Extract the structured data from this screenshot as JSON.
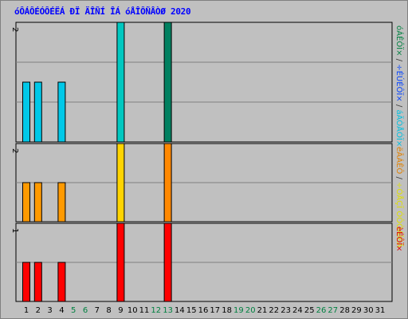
{
  "title": "óÔÁÔÉÓÔÉËÁ ÐÏ ÄÎÑÍ ÎÁ óÅÎÔÑÂÒØ 2020",
  "chart_data": [
    {
      "type": "bar",
      "panel": "top",
      "ymax_label": "2",
      "legend": [
        {
          "text": "óÁÊÔÏ×",
          "color": "#008040"
        },
        {
          "text": "/",
          "color": "#404040"
        },
        {
          "text": "÷ÉÚÉÔÏ×",
          "color": "#0040ff"
        },
        {
          "text": "/",
          "color": "#404040"
        },
        {
          "text": "áÄÒÅÓÏ×",
          "color": "#00c0e0"
        }
      ],
      "series": [
        {
          "name": "áÄÒÅÓÏ×",
          "color": "#00c8e8",
          "values": [
            1,
            1,
            0,
            1,
            0,
            0,
            0,
            0,
            2,
            0,
            0,
            0,
            0,
            0,
            0,
            0,
            0,
            0,
            0,
            0,
            0,
            0,
            0,
            0,
            0,
            0,
            0,
            0,
            0,
            0
          ]
        },
        {
          "name": "÷ÉÚÉÔÏ×",
          "color": "#0080e0",
          "values": [
            1,
            1,
            0,
            1,
            0,
            0,
            0,
            0,
            2,
            0,
            0,
            0,
            2,
            0,
            0,
            0,
            0,
            0,
            0,
            0,
            0,
            0,
            0,
            0,
            0,
            0,
            0,
            0,
            0,
            0
          ]
        },
        {
          "name": "óÁÊÔÏ×",
          "color": "#008060",
          "values": [
            0,
            0,
            0,
            0,
            0,
            0,
            0,
            0,
            0,
            0,
            0,
            0,
            2,
            0,
            0,
            0,
            0,
            0,
            0,
            0,
            0,
            0,
            0,
            0,
            0,
            0,
            0,
            0,
            0,
            0
          ]
        }
      ],
      "bars": [
        {
          "day": 1,
          "value": 1,
          "color": "#00c8e8"
        },
        {
          "day": 2,
          "value": 1,
          "color": "#00c8e8"
        },
        {
          "day": 4,
          "value": 1,
          "color": "#00c8e8"
        },
        {
          "day": 9,
          "value": 2,
          "color": "#00c8c0"
        },
        {
          "day": 13,
          "value": 2,
          "color": "#008060"
        }
      ],
      "ymax": 2
    },
    {
      "type": "bar",
      "panel": "middle",
      "ymax_label": "2",
      "legend": [
        {
          "text": "ëÂÁÊÔ",
          "color": "#e08000"
        },
        {
          "text": "/",
          "color": "#404040"
        },
        {
          "text": "÷ÓÅÇÏ ÓÔÒÁÎÉÃ",
          "color": "#e0e000"
        }
      ],
      "bars": [
        {
          "day": 1,
          "value": 1,
          "color": "#ff9a00"
        },
        {
          "day": 2,
          "value": 1,
          "color": "#ff9a00"
        },
        {
          "day": 4,
          "value": 1,
          "color": "#ff9a00"
        },
        {
          "day": 9,
          "value": 2,
          "color": "#ffd400"
        },
        {
          "day": 13,
          "value": 2,
          "color": "#ff8800"
        }
      ],
      "ymax": 2
    },
    {
      "type": "bar",
      "panel": "bottom",
      "ymax_label": "1",
      "legend": [
        {
          "text": "èÉÔÏ×",
          "color": "#e00000"
        }
      ],
      "bars": [
        {
          "day": 1,
          "value": 0.5,
          "color": "#ff0000"
        },
        {
          "day": 2,
          "value": 0.5,
          "color": "#ff0000"
        },
        {
          "day": 4,
          "value": 0.5,
          "color": "#ff0000"
        },
        {
          "day": 9,
          "value": 1,
          "color": "#ff0000"
        },
        {
          "day": 13,
          "value": 1,
          "color": "#ff0000"
        }
      ],
      "ymax": 1
    }
  ],
  "x_axis": {
    "days": [
      1,
      2,
      3,
      4,
      5,
      6,
      7,
      8,
      9,
      10,
      11,
      12,
      13,
      14,
      15,
      16,
      17,
      18,
      19,
      20,
      21,
      22,
      23,
      24,
      25,
      26,
      27,
      28,
      29,
      30,
      31
    ],
    "weekend_days": [
      5,
      6,
      12,
      13,
      19,
      20,
      26,
      27
    ],
    "weekday_color": "#000000",
    "weekend_color": "#008040"
  },
  "colors": {
    "background": "#c0c0c0",
    "grid": "#808080",
    "axis": "#000000"
  }
}
